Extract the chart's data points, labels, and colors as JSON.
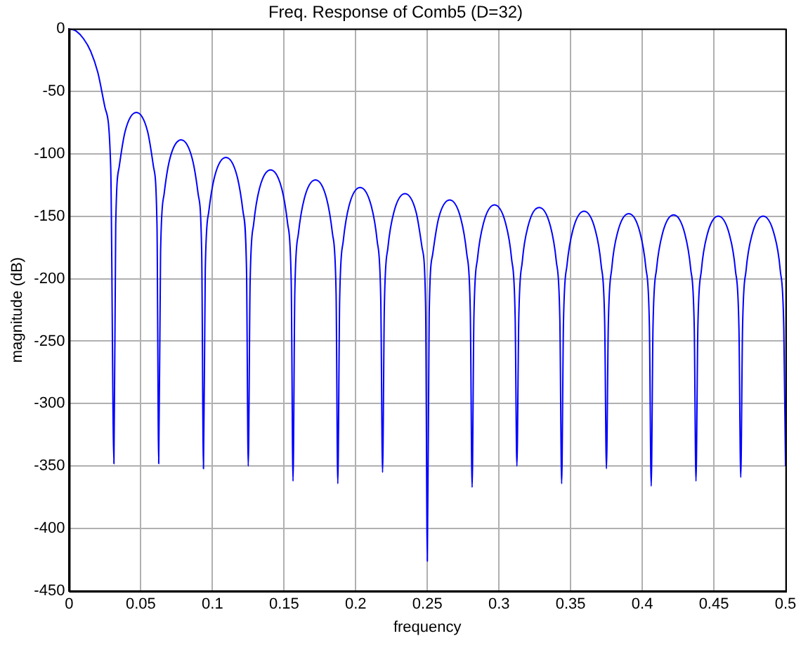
{
  "chart_data": {
    "type": "line",
    "title": "Freq. Response of Comb5 (D=32)",
    "xlabel": "frequency",
    "ylabel": "magnitude (dB)",
    "xlim": [
      0,
      0.5
    ],
    "xticks": [
      0,
      0.05,
      0.1,
      0.15,
      0.2,
      0.25,
      0.3,
      0.35,
      0.4,
      0.45,
      0.5
    ],
    "ylim": [
      -450,
      0
    ],
    "yticks": [
      -450,
      -400,
      -350,
      -300,
      -250,
      -200,
      -150,
      -100,
      -50,
      0
    ],
    "grid": true,
    "series": [
      {
        "color": "#0000ff",
        "x": [
          0,
          0.005,
          0.01,
          0.015,
          0.02,
          0.025,
          0.029,
          0.03125,
          0.0325,
          0.035,
          0.0391,
          0.0469,
          0.0547,
          0.0588,
          0.0613,
          0.0625,
          0.0638,
          0.0663,
          0.0703,
          0.0781,
          0.0859,
          0.09,
          0.0925,
          0.09375,
          0.095,
          0.0975,
          0.1016,
          0.1094,
          0.1172,
          0.1213,
          0.1238,
          0.125,
          0.1263,
          0.1288,
          0.1328,
          0.1406,
          0.1484,
          0.1525,
          0.155,
          0.15625,
          0.1575,
          0.16,
          0.1641,
          0.1719,
          0.1797,
          0.1838,
          0.1863,
          0.1875,
          0.1888,
          0.1913,
          0.1953,
          0.2031,
          0.2109,
          0.215,
          0.2175,
          0.21875,
          0.22,
          0.2225,
          0.2266,
          0.2344,
          0.2422,
          0.2463,
          0.2488,
          0.25,
          0.2513,
          0.2538,
          0.2578,
          0.2656,
          0.2734,
          0.2775,
          0.28,
          0.28125,
          0.2825,
          0.285,
          0.2891,
          0.2969,
          0.3047,
          0.3088,
          0.3113,
          0.3125,
          0.3138,
          0.3163,
          0.3203,
          0.3281,
          0.3359,
          0.34,
          0.3425,
          0.34375,
          0.345,
          0.3475,
          0.3516,
          0.3594,
          0.3672,
          0.3713,
          0.3738,
          0.375,
          0.3763,
          0.3788,
          0.3828,
          0.3906,
          0.3984,
          0.4025,
          0.405,
          0.40625,
          0.4075,
          0.41,
          0.4141,
          0.4219,
          0.4297,
          0.4338,
          0.4363,
          0.4375,
          0.4388,
          0.4413,
          0.4453,
          0.4531,
          0.4609,
          0.465,
          0.4675,
          0.46875,
          0.47,
          0.4725,
          0.4766,
          0.4844,
          0.4922,
          0.4963,
          0.4988,
          0.5
        ],
        "values": [
          0,
          -2,
          -8,
          -18,
          -35,
          -63,
          -111,
          -348,
          -157,
          -110,
          -82,
          -67,
          -82,
          -110,
          -157,
          -348,
          -179,
          -132,
          -104,
          -89,
          -104,
          -132,
          -179,
          -352,
          -193,
          -146,
          -118,
          -103,
          -118,
          -146,
          -193,
          -350,
          -203,
          -156,
          -128,
          -113,
          -128,
          -156,
          -203,
          -362,
          -211,
          -164,
          -136,
          -121,
          -136,
          -164,
          -211,
          -364,
          -217,
          -170,
          -142,
          -127,
          -142,
          -170,
          -217,
          -355,
          -222,
          -175,
          -147,
          -132,
          -147,
          -175,
          -222,
          -426,
          -227,
          -180,
          -152,
          -137,
          -152,
          -180,
          -227,
          -367,
          -231,
          -184,
          -156,
          -141,
          -156,
          -184,
          -231,
          -350,
          -233,
          -186,
          -158,
          -143,
          -158,
          -186,
          -233,
          -364,
          -236,
          -189,
          -161,
          -146,
          -161,
          -189,
          -236,
          -352,
          -238,
          -191,
          -163,
          -148,
          -163,
          -191,
          -238,
          -366,
          -239,
          -192,
          -164,
          -149,
          -164,
          -192,
          -239,
          -362,
          -240,
          -193,
          -165,
          -150,
          -165,
          -193,
          -240,
          -359,
          -240,
          -193,
          -165,
          -150,
          -165,
          -193,
          -240,
          -350
        ]
      }
    ]
  }
}
